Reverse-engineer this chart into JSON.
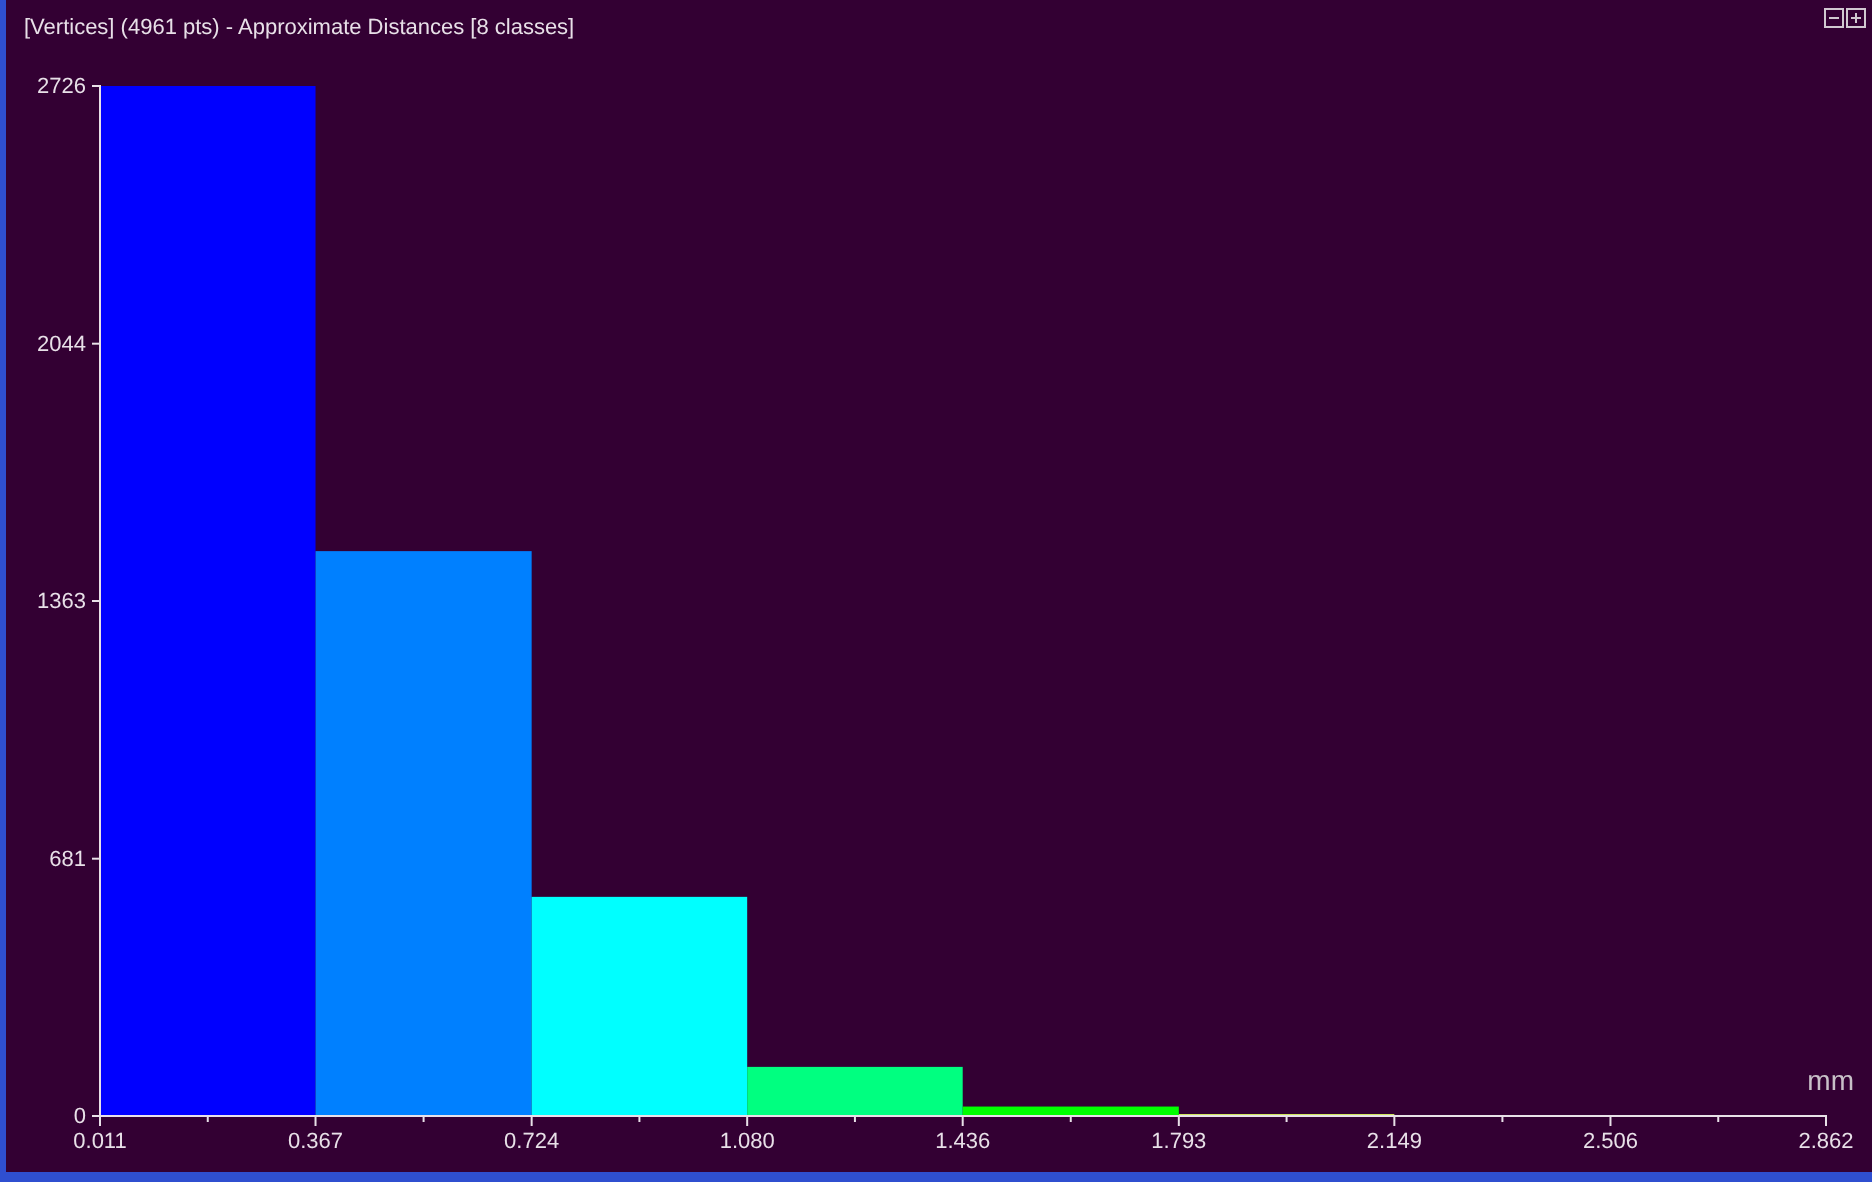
{
  "chart_data": {
    "type": "histogram",
    "title": "[Vertices] (4961 pts) - Approximate Distances [8 classes]",
    "xlabel": "mm",
    "bins": [
      0.011,
      0.367,
      0.724,
      1.08,
      1.436,
      1.793,
      2.149
    ],
    "values": [
      2726,
      1495,
      580,
      130,
      25,
      5
    ],
    "colors": [
      "#0000ff",
      "#0080ff",
      "#00ffff",
      "#00ff80",
      "#00ff00",
      "#e0ff60"
    ],
    "xlim": [
      0.011,
      2.862
    ],
    "xticks": [
      {
        "value": 0.011,
        "label": "0.011"
      },
      0.367,
      0.724,
      {
        "value": 1.08,
        "label": "1.080"
      },
      1.436,
      1.793,
      2.149,
      2.506,
      2.862
    ],
    "ylim": [
      0,
      2726
    ],
    "yticks": [
      0,
      681,
      1363,
      2044,
      2726
    ],
    "grid": false
  }
}
